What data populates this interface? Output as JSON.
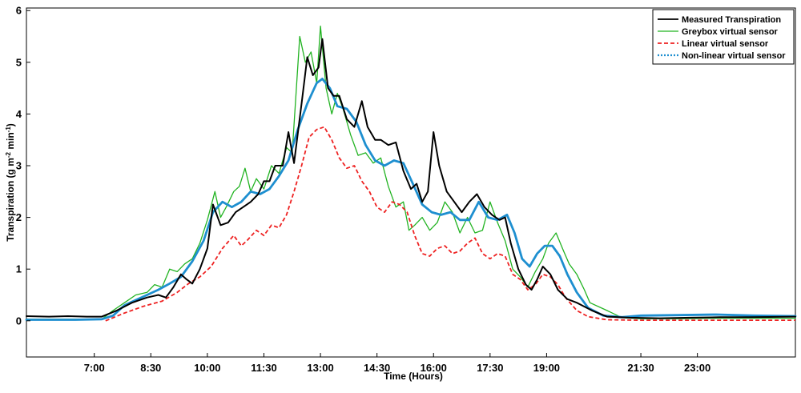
{
  "chart_data": {
    "type": "line",
    "xlabel": "Time (Hours)",
    "ylabel_parts": [
      "Transpiration (g m",
      "-2",
      " min",
      "-1",
      ")"
    ],
    "xlim": [
      5.2,
      25.6
    ],
    "ylim": [
      -0.7,
      6.05
    ],
    "x_ticks": [
      {
        "value": 7.0,
        "label": "7:00"
      },
      {
        "value": 8.5,
        "label": "8:30"
      },
      {
        "value": 10.0,
        "label": "10:00"
      },
      {
        "value": 11.5,
        "label": "11:30"
      },
      {
        "value": 13.0,
        "label": "13:00"
      },
      {
        "value": 14.5,
        "label": "14:30"
      },
      {
        "value": 16.0,
        "label": "16:00"
      },
      {
        "value": 17.5,
        "label": "17:30"
      },
      {
        "value": 19.0,
        "label": "19:00"
      },
      {
        "value": 21.5,
        "label": "21:30"
      },
      {
        "value": 23.0,
        "label": "23:00"
      }
    ],
    "y_ticks": [
      {
        "value": 0,
        "label": "0"
      },
      {
        "value": 1,
        "label": "1"
      },
      {
        "value": 2,
        "label": "2"
      },
      {
        "value": 3,
        "label": "3"
      },
      {
        "value": 4,
        "label": "4"
      },
      {
        "value": 5,
        "label": "5"
      },
      {
        "value": 6,
        "label": "6"
      }
    ],
    "legend_position": "top-right",
    "series": [
      {
        "name": "Measured Transpiration",
        "color": "#000000",
        "style": "solid",
        "points": [
          [
            5.2,
            0.09
          ],
          [
            5.8,
            0.08
          ],
          [
            6.3,
            0.09
          ],
          [
            6.8,
            0.08
          ],
          [
            7.2,
            0.08
          ],
          [
            7.6,
            0.2
          ],
          [
            8.0,
            0.35
          ],
          [
            8.4,
            0.45
          ],
          [
            8.7,
            0.5
          ],
          [
            8.9,
            0.45
          ],
          [
            9.1,
            0.65
          ],
          [
            9.3,
            0.9
          ],
          [
            9.45,
            0.8
          ],
          [
            9.6,
            0.72
          ],
          [
            9.8,
            1.0
          ],
          [
            10.0,
            1.4
          ],
          [
            10.15,
            2.25
          ],
          [
            10.35,
            1.85
          ],
          [
            10.55,
            1.9
          ],
          [
            10.75,
            2.1
          ],
          [
            10.95,
            2.2
          ],
          [
            11.15,
            2.3
          ],
          [
            11.35,
            2.45
          ],
          [
            11.5,
            2.7
          ],
          [
            11.65,
            2.7
          ],
          [
            11.8,
            3.0
          ],
          [
            12.0,
            3.0
          ],
          [
            12.15,
            3.65
          ],
          [
            12.3,
            3.05
          ],
          [
            12.5,
            4.2
          ],
          [
            12.65,
            5.1
          ],
          [
            12.8,
            4.75
          ],
          [
            12.95,
            4.9
          ],
          [
            13.05,
            5.45
          ],
          [
            13.2,
            4.5
          ],
          [
            13.35,
            4.35
          ],
          [
            13.5,
            4.35
          ],
          [
            13.7,
            3.9
          ],
          [
            13.9,
            3.75
          ],
          [
            14.1,
            4.25
          ],
          [
            14.25,
            3.75
          ],
          [
            14.45,
            3.5
          ],
          [
            14.6,
            3.5
          ],
          [
            14.8,
            3.4
          ],
          [
            15.0,
            3.45
          ],
          [
            15.2,
            2.9
          ],
          [
            15.4,
            2.55
          ],
          [
            15.55,
            2.65
          ],
          [
            15.7,
            2.3
          ],
          [
            15.85,
            2.5
          ],
          [
            16.0,
            3.65
          ],
          [
            16.15,
            3.0
          ],
          [
            16.35,
            2.5
          ],
          [
            16.55,
            2.3
          ],
          [
            16.75,
            2.1
          ],
          [
            16.95,
            2.3
          ],
          [
            17.15,
            2.45
          ],
          [
            17.35,
            2.2
          ],
          [
            17.55,
            2.05
          ],
          [
            17.75,
            1.95
          ],
          [
            17.9,
            2.0
          ],
          [
            18.05,
            1.5
          ],
          [
            18.25,
            1.0
          ],
          [
            18.45,
            0.7
          ],
          [
            18.6,
            0.6
          ],
          [
            18.75,
            0.8
          ],
          [
            18.9,
            1.05
          ],
          [
            19.1,
            0.9
          ],
          [
            19.3,
            0.6
          ],
          [
            19.55,
            0.42
          ],
          [
            19.8,
            0.35
          ],
          [
            20.2,
            0.2
          ],
          [
            20.6,
            0.08
          ],
          [
            21.2,
            0.06
          ],
          [
            22.0,
            0.05
          ],
          [
            22.8,
            0.06
          ],
          [
            23.6,
            0.07
          ],
          [
            24.4,
            0.07
          ],
          [
            25.6,
            0.08
          ]
        ]
      },
      {
        "name": "Greybox virtual sensor",
        "color": "#22b322",
        "style": "solid",
        "points": [
          [
            5.2,
            0.03
          ],
          [
            6.5,
            0.03
          ],
          [
            7.2,
            0.03
          ],
          [
            7.5,
            0.2
          ],
          [
            7.8,
            0.35
          ],
          [
            8.1,
            0.5
          ],
          [
            8.4,
            0.55
          ],
          [
            8.6,
            0.7
          ],
          [
            8.8,
            0.65
          ],
          [
            9.0,
            1.0
          ],
          [
            9.2,
            0.95
          ],
          [
            9.4,
            1.1
          ],
          [
            9.6,
            1.2
          ],
          [
            9.8,
            1.5
          ],
          [
            10.0,
            1.95
          ],
          [
            10.2,
            2.5
          ],
          [
            10.35,
            2.0
          ],
          [
            10.5,
            2.2
          ],
          [
            10.7,
            2.5
          ],
          [
            10.85,
            2.6
          ],
          [
            11.0,
            2.95
          ],
          [
            11.15,
            2.5
          ],
          [
            11.3,
            2.75
          ],
          [
            11.5,
            2.55
          ],
          [
            11.7,
            3.0
          ],
          [
            11.9,
            2.85
          ],
          [
            12.1,
            3.35
          ],
          [
            12.25,
            3.25
          ],
          [
            12.45,
            5.5
          ],
          [
            12.6,
            5.0
          ],
          [
            12.75,
            5.2
          ],
          [
            12.9,
            4.6
          ],
          [
            13.0,
            5.7
          ],
          [
            13.15,
            4.5
          ],
          [
            13.3,
            4.0
          ],
          [
            13.45,
            4.4
          ],
          [
            13.6,
            4.1
          ],
          [
            13.8,
            3.6
          ],
          [
            14.0,
            3.2
          ],
          [
            14.2,
            3.25
          ],
          [
            14.4,
            3.05
          ],
          [
            14.6,
            3.15
          ],
          [
            14.8,
            2.6
          ],
          [
            15.0,
            2.2
          ],
          [
            15.2,
            2.3
          ],
          [
            15.35,
            1.75
          ],
          [
            15.5,
            1.85
          ],
          [
            15.7,
            2.0
          ],
          [
            15.9,
            1.75
          ],
          [
            16.1,
            1.9
          ],
          [
            16.3,
            2.3
          ],
          [
            16.5,
            2.1
          ],
          [
            16.7,
            1.7
          ],
          [
            16.9,
            2.0
          ],
          [
            17.1,
            1.7
          ],
          [
            17.3,
            1.75
          ],
          [
            17.5,
            2.3
          ],
          [
            17.7,
            1.9
          ],
          [
            17.9,
            1.55
          ],
          [
            18.1,
            1.0
          ],
          [
            18.3,
            0.85
          ],
          [
            18.5,
            0.65
          ],
          [
            18.7,
            0.95
          ],
          [
            18.9,
            1.2
          ],
          [
            19.05,
            1.5
          ],
          [
            19.25,
            1.7
          ],
          [
            19.45,
            1.35
          ],
          [
            19.6,
            1.1
          ],
          [
            19.8,
            0.9
          ],
          [
            20.0,
            0.6
          ],
          [
            20.15,
            0.35
          ],
          [
            20.6,
            0.2
          ],
          [
            21.0,
            0.06
          ],
          [
            21.5,
            0.04
          ],
          [
            22.5,
            0.04
          ],
          [
            23.5,
            0.05
          ],
          [
            24.5,
            0.05
          ],
          [
            25.6,
            0.05
          ]
        ]
      },
      {
        "name": "Linear virtual sensor",
        "color": "#ee2222",
        "style": "dashed",
        "points": [
          [
            7.3,
            0.0
          ],
          [
            7.8,
            0.15
          ],
          [
            8.3,
            0.28
          ],
          [
            8.8,
            0.38
          ],
          [
            9.2,
            0.55
          ],
          [
            9.5,
            0.72
          ],
          [
            9.8,
            0.85
          ],
          [
            10.1,
            1.05
          ],
          [
            10.4,
            1.4
          ],
          [
            10.7,
            1.65
          ],
          [
            10.9,
            1.45
          ],
          [
            11.05,
            1.55
          ],
          [
            11.3,
            1.75
          ],
          [
            11.5,
            1.65
          ],
          [
            11.7,
            1.85
          ],
          [
            11.9,
            1.8
          ],
          [
            12.1,
            2.05
          ],
          [
            12.3,
            2.5
          ],
          [
            12.5,
            3.0
          ],
          [
            12.7,
            3.55
          ],
          [
            12.9,
            3.7
          ],
          [
            13.1,
            3.75
          ],
          [
            13.3,
            3.5
          ],
          [
            13.5,
            3.15
          ],
          [
            13.7,
            2.95
          ],
          [
            13.9,
            3.0
          ],
          [
            14.1,
            2.7
          ],
          [
            14.3,
            2.5
          ],
          [
            14.5,
            2.2
          ],
          [
            14.7,
            2.1
          ],
          [
            14.9,
            2.3
          ],
          [
            15.1,
            2.25
          ],
          [
            15.3,
            2.1
          ],
          [
            15.5,
            1.65
          ],
          [
            15.7,
            1.3
          ],
          [
            15.9,
            1.25
          ],
          [
            16.1,
            1.4
          ],
          [
            16.3,
            1.45
          ],
          [
            16.5,
            1.3
          ],
          [
            16.7,
            1.35
          ],
          [
            16.9,
            1.5
          ],
          [
            17.1,
            1.6
          ],
          [
            17.3,
            1.3
          ],
          [
            17.5,
            1.2
          ],
          [
            17.7,
            1.3
          ],
          [
            17.9,
            1.25
          ],
          [
            18.1,
            0.9
          ],
          [
            18.3,
            0.8
          ],
          [
            18.5,
            0.6
          ],
          [
            18.7,
            0.7
          ],
          [
            18.9,
            0.9
          ],
          [
            19.1,
            0.85
          ],
          [
            19.3,
            0.7
          ],
          [
            19.5,
            0.45
          ],
          [
            19.8,
            0.2
          ],
          [
            20.1,
            0.08
          ],
          [
            20.6,
            0.02
          ],
          [
            21.5,
            0.01
          ],
          [
            23.0,
            0.01
          ],
          [
            25.6,
            0.01
          ]
        ]
      },
      {
        "name": "Non-linear virtual sensor",
        "color": "#1e8fd0",
        "style": "dotted-thick",
        "points": [
          [
            5.2,
            0.02
          ],
          [
            6.5,
            0.02
          ],
          [
            7.2,
            0.03
          ],
          [
            7.5,
            0.1
          ],
          [
            7.8,
            0.3
          ],
          [
            8.1,
            0.4
          ],
          [
            8.4,
            0.5
          ],
          [
            8.7,
            0.6
          ],
          [
            9.0,
            0.72
          ],
          [
            9.3,
            0.85
          ],
          [
            9.6,
            1.15
          ],
          [
            9.9,
            1.55
          ],
          [
            10.15,
            2.1
          ],
          [
            10.4,
            2.3
          ],
          [
            10.65,
            2.2
          ],
          [
            10.9,
            2.3
          ],
          [
            11.15,
            2.5
          ],
          [
            11.4,
            2.45
          ],
          [
            11.65,
            2.55
          ],
          [
            11.9,
            2.8
          ],
          [
            12.15,
            3.1
          ],
          [
            12.4,
            3.7
          ],
          [
            12.65,
            4.2
          ],
          [
            12.9,
            4.6
          ],
          [
            13.05,
            4.68
          ],
          [
            13.25,
            4.5
          ],
          [
            13.45,
            4.15
          ],
          [
            13.7,
            4.1
          ],
          [
            13.95,
            3.85
          ],
          [
            14.2,
            3.4
          ],
          [
            14.45,
            3.1
          ],
          [
            14.7,
            3.0
          ],
          [
            14.95,
            3.1
          ],
          [
            15.2,
            3.05
          ],
          [
            15.45,
            2.65
          ],
          [
            15.7,
            2.25
          ],
          [
            15.95,
            2.1
          ],
          [
            16.2,
            2.05
          ],
          [
            16.45,
            2.1
          ],
          [
            16.7,
            1.95
          ],
          [
            16.95,
            1.95
          ],
          [
            17.2,
            2.3
          ],
          [
            17.45,
            2.0
          ],
          [
            17.7,
            1.95
          ],
          [
            17.95,
            2.05
          ],
          [
            18.15,
            1.7
          ],
          [
            18.35,
            1.2
          ],
          [
            18.55,
            1.05
          ],
          [
            18.75,
            1.3
          ],
          [
            18.95,
            1.45
          ],
          [
            19.15,
            1.45
          ],
          [
            19.35,
            1.25
          ],
          [
            19.55,
            0.9
          ],
          [
            19.8,
            0.55
          ],
          [
            20.1,
            0.25
          ],
          [
            20.5,
            0.1
          ],
          [
            21.0,
            0.07
          ],
          [
            21.5,
            0.1
          ],
          [
            22.5,
            0.11
          ],
          [
            23.5,
            0.12
          ],
          [
            24.5,
            0.1
          ],
          [
            25.6,
            0.09
          ]
        ]
      }
    ]
  }
}
